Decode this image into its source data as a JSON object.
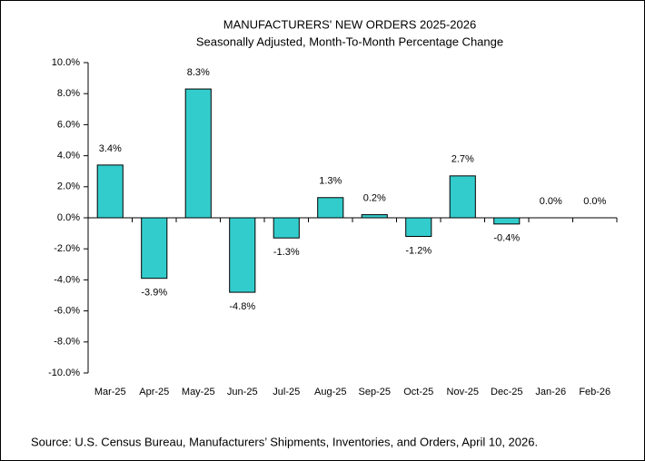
{
  "chart_data": {
    "type": "bar",
    "title": "MANUFACTURERS' NEW ORDERS 2025-2026",
    "subtitle": "Seasonally Adjusted,  Month-To-Month Percentage Change",
    "source": "Source: U.S. Census Bureau, Manufacturers’ Shipments, Inventories, and Orders, April 10, 2026.",
    "categories": [
      "Mar-25",
      "Apr-25",
      "May-25",
      "Jun-25",
      "Jul-25",
      "Aug-25",
      "Sep-25",
      "Oct-25",
      "Nov-25",
      "Dec-25",
      "Jan-26",
      "Feb-26"
    ],
    "values": [
      3.4,
      -3.9,
      8.3,
      -4.8,
      -1.3,
      1.3,
      0.2,
      -1.2,
      2.7,
      -0.4,
      0.0,
      0.0
    ],
    "value_labels": [
      "3.4%",
      "-3.9%",
      "8.3%",
      "-4.8%",
      "-1.3%",
      "1.3%",
      "0.2%",
      "-1.2%",
      "2.7%",
      "-0.4%",
      "0.0%",
      "0.0%"
    ],
    "color": "#33cccc",
    "ylim": [
      -10,
      10
    ],
    "yticks": [
      {
        "value": -10,
        "label": "-10.0%"
      },
      {
        "value": -8,
        "label": "-8.0%"
      },
      {
        "value": -6,
        "label": "-6.0%"
      },
      {
        "value": -4,
        "label": "-4.0%"
      },
      {
        "value": -2,
        "label": "-2.0%"
      },
      {
        "value": 0,
        "label": "0.0%"
      },
      {
        "value": 2,
        "label": "2.0%"
      },
      {
        "value": 4,
        "label": "4.0%"
      },
      {
        "value": 6,
        "label": "6.0%"
      },
      {
        "value": 8,
        "label": "8.0%"
      },
      {
        "value": 10,
        "label": "10.0%"
      }
    ],
    "grid": false
  }
}
